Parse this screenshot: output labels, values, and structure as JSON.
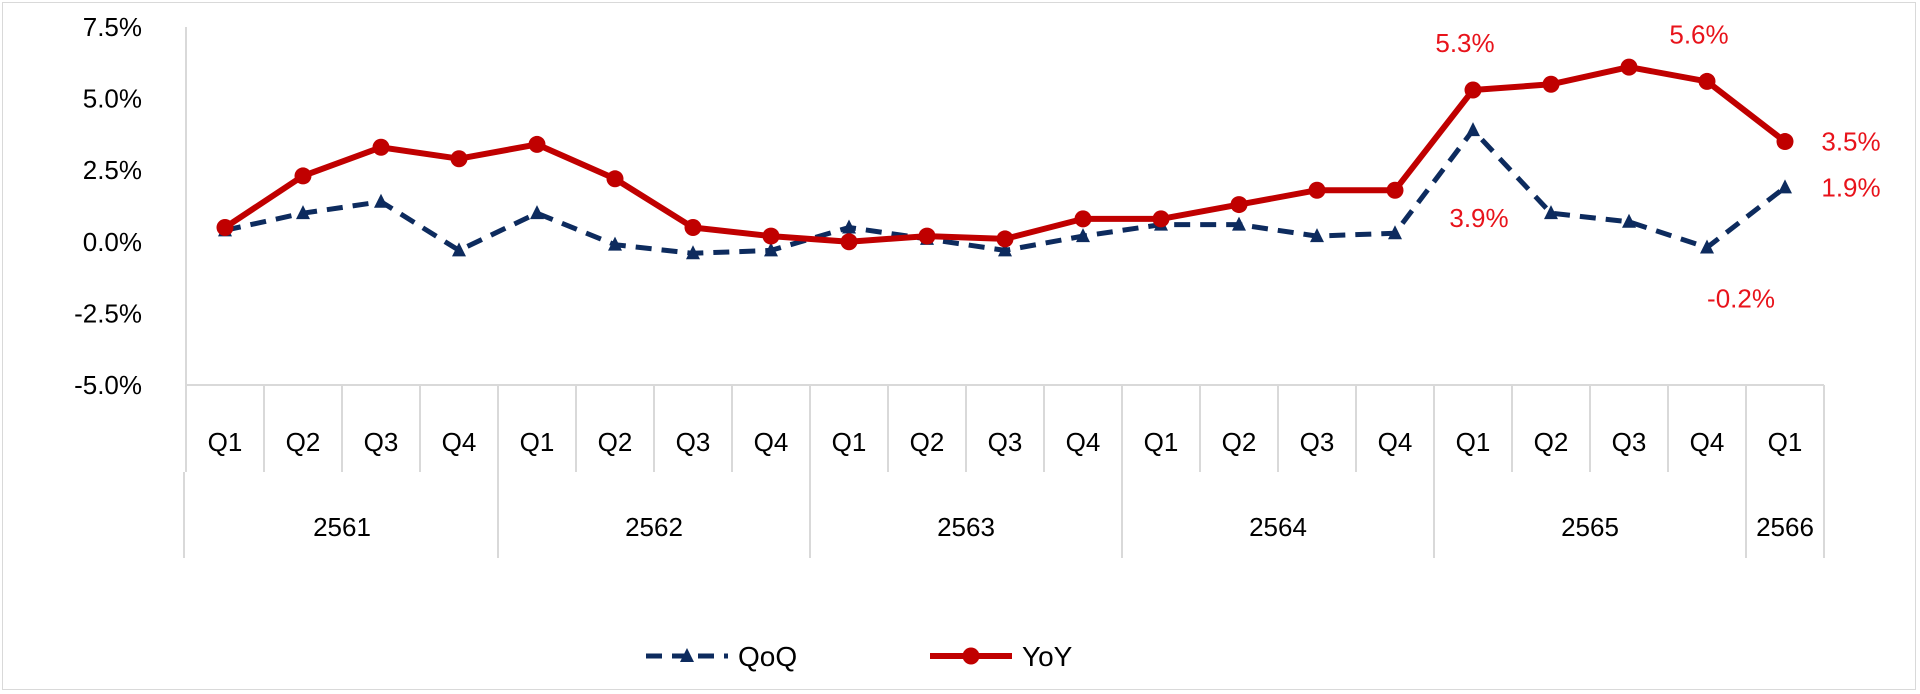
{
  "chart_data": {
    "type": "line",
    "yticks": [
      "7.5%",
      "5.0%",
      "2.5%",
      "0.0%",
      "-2.5%",
      "-5.0%"
    ],
    "ylim": [
      -5.0,
      7.5
    ],
    "quarters": [
      "Q1",
      "Q2",
      "Q3",
      "Q4",
      "Q1",
      "Q2",
      "Q3",
      "Q4",
      "Q1",
      "Q2",
      "Q3",
      "Q4",
      "Q1",
      "Q2",
      "Q3",
      "Q4",
      "Q1",
      "Q2",
      "Q3",
      "Q4",
      "Q1"
    ],
    "years": [
      {
        "label": "2561",
        "count": 4
      },
      {
        "label": "2562",
        "count": 4
      },
      {
        "label": "2563",
        "count": 4
      },
      {
        "label": "2564",
        "count": 4
      },
      {
        "label": "2565",
        "count": 4
      },
      {
        "label": "2566",
        "count": 1
      }
    ],
    "grid": false,
    "legend_position": "bottom",
    "series": [
      {
        "name": "QoQ",
        "color": "#0d2b5e",
        "style": "dashed",
        "marker": "triangle",
        "values": [
          0.4,
          1.0,
          1.4,
          -0.3,
          1.0,
          -0.1,
          -0.4,
          -0.3,
          0.5,
          0.1,
          -0.3,
          0.2,
          0.6,
          0.6,
          0.2,
          0.3,
          3.9,
          1.0,
          0.7,
          -0.2,
          1.9
        ]
      },
      {
        "name": "YoY",
        "color": "#c00000",
        "style": "solid",
        "marker": "circle",
        "values": [
          0.5,
          2.3,
          3.3,
          2.9,
          3.4,
          2.2,
          0.5,
          0.2,
          0.0,
          0.2,
          0.1,
          0.8,
          0.8,
          1.3,
          1.8,
          1.8,
          5.3,
          5.5,
          6.1,
          5.6,
          3.5
        ]
      }
    ],
    "annotations": [
      {
        "text": "5.3%",
        "series": "YoY",
        "index": 16,
        "pos": "above"
      },
      {
        "text": "5.6%",
        "series": "YoY",
        "index": 19,
        "pos": "above"
      },
      {
        "text": "3.5%",
        "series": "YoY",
        "index": 20,
        "pos": "right"
      },
      {
        "text": "3.9%",
        "series": "QoQ",
        "index": 16,
        "pos": "below"
      },
      {
        "text": "-0.2%",
        "series": "QoQ",
        "index": 19,
        "pos": "below"
      },
      {
        "text": "1.9%",
        "series": "QoQ",
        "index": 20,
        "pos": "right"
      }
    ],
    "annotation_color": "#e8131b"
  }
}
